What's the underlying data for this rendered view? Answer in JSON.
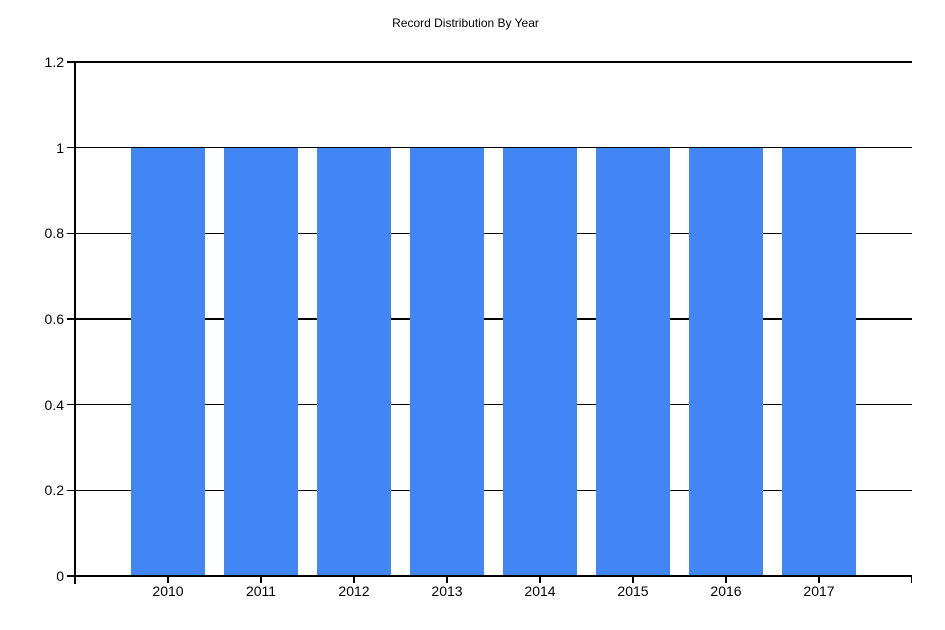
{
  "chart_data": {
    "type": "bar",
    "title": "Record Distribution By Year",
    "categories": [
      "2010",
      "2011",
      "2012",
      "2013",
      "2014",
      "2015",
      "2016",
      "2017"
    ],
    "values": [
      1,
      1,
      1,
      1,
      1,
      1,
      1,
      1
    ],
    "xlabel": "",
    "ylabel": "",
    "ylim": [
      0,
      1.2
    ],
    "ytick_interval": 0.2,
    "ytick_labels": [
      "0",
      "0.2",
      "0.4",
      "0.6",
      "0.8",
      "1",
      "1.2"
    ],
    "ytick_values": [
      0,
      0.2,
      0.4,
      0.6,
      0.8,
      1,
      1.2
    ],
    "grid": "horizontal",
    "legend": "none",
    "bar_color": "#4285F4",
    "axis_color": "#000000",
    "text_color": "#000000",
    "background_color": "#ffffff"
  }
}
